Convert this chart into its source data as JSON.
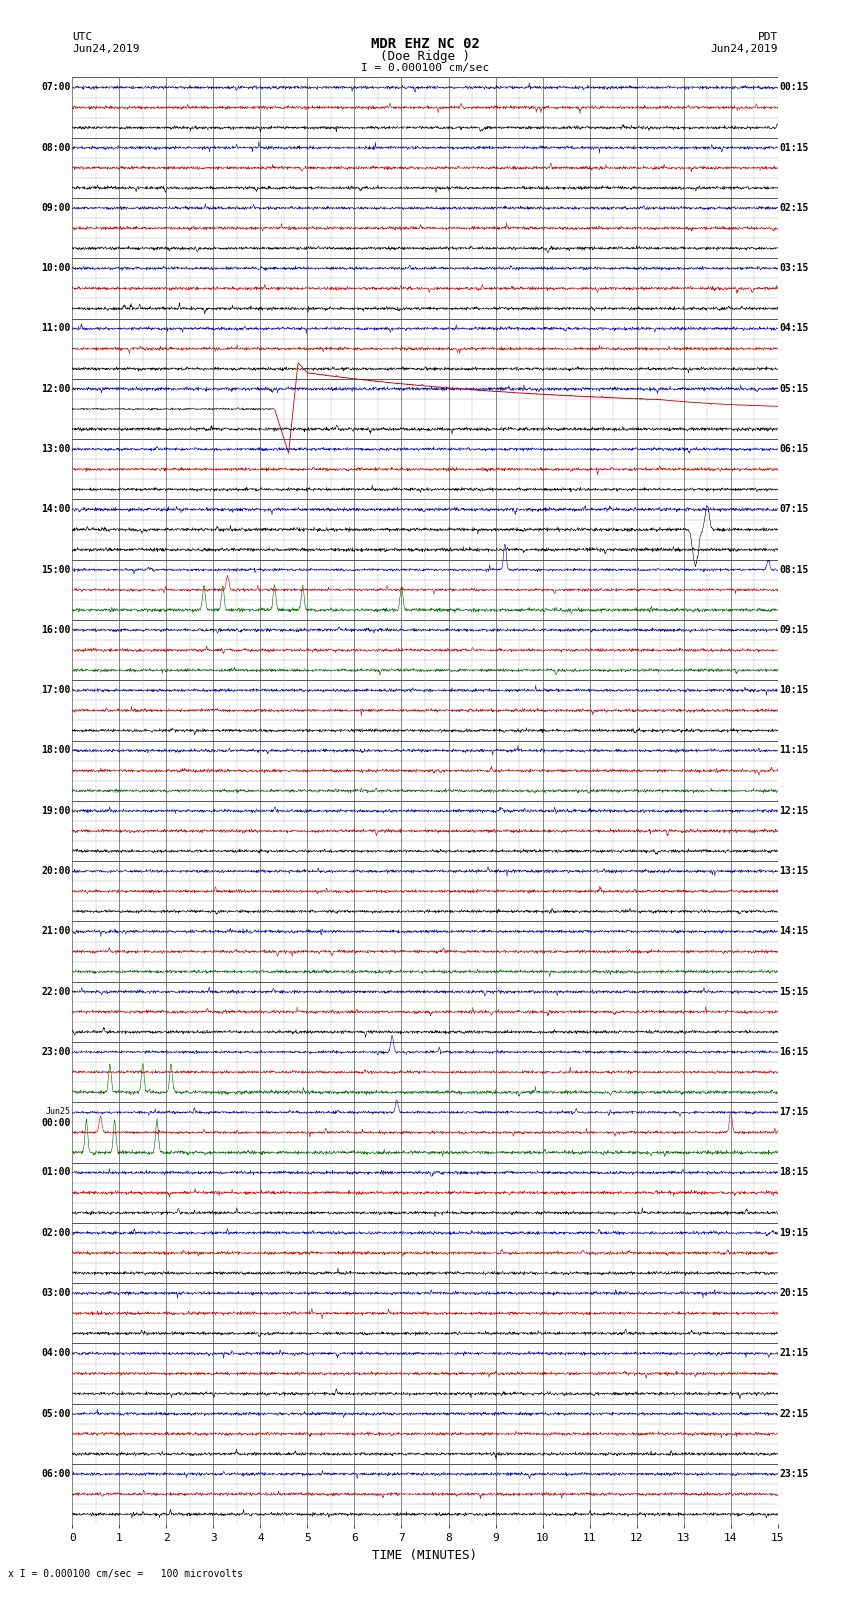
{
  "title_line1": "MDR EHZ NC 02",
  "title_line2": "(Doe Ridge )",
  "title_line3": "I = 0.000100 cm/sec",
  "left_label_top": "UTC",
  "left_label_date": "Jun24,2019",
  "right_label_top": "PDT",
  "right_label_date": "Jun24,2019",
  "bottom_label": "TIME (MINUTES)",
  "bottom_note": "x I = 0.000100 cm/sec =   100 microvolts",
  "utc_times": [
    "07:00",
    "08:00",
    "09:00",
    "10:00",
    "11:00",
    "12:00",
    "13:00",
    "14:00",
    "15:00",
    "16:00",
    "17:00",
    "18:00",
    "19:00",
    "20:00",
    "21:00",
    "22:00",
    "23:00",
    "Jun25\n00:00",
    "01:00",
    "02:00",
    "03:00",
    "04:00",
    "05:00",
    "06:00"
  ],
  "pdt_times": [
    "00:15",
    "01:15",
    "02:15",
    "03:15",
    "04:15",
    "05:15",
    "06:15",
    "07:15",
    "08:15",
    "09:15",
    "10:15",
    "11:15",
    "12:15",
    "13:15",
    "14:15",
    "15:15",
    "16:15",
    "17:15",
    "18:15",
    "19:15",
    "20:15",
    "21:15",
    "22:15",
    "23:15"
  ],
  "n_rows": 24,
  "bg_color": "#ffffff",
  "trace_color_black": "#000000",
  "trace_color_red": "#cc0000",
  "trace_color_blue": "#0000aa",
  "trace_color_green": "#006600",
  "grid_color": "#aaaaaa",
  "grid_color_major": "#555555",
  "fig_width": 8.5,
  "fig_height": 16.13
}
